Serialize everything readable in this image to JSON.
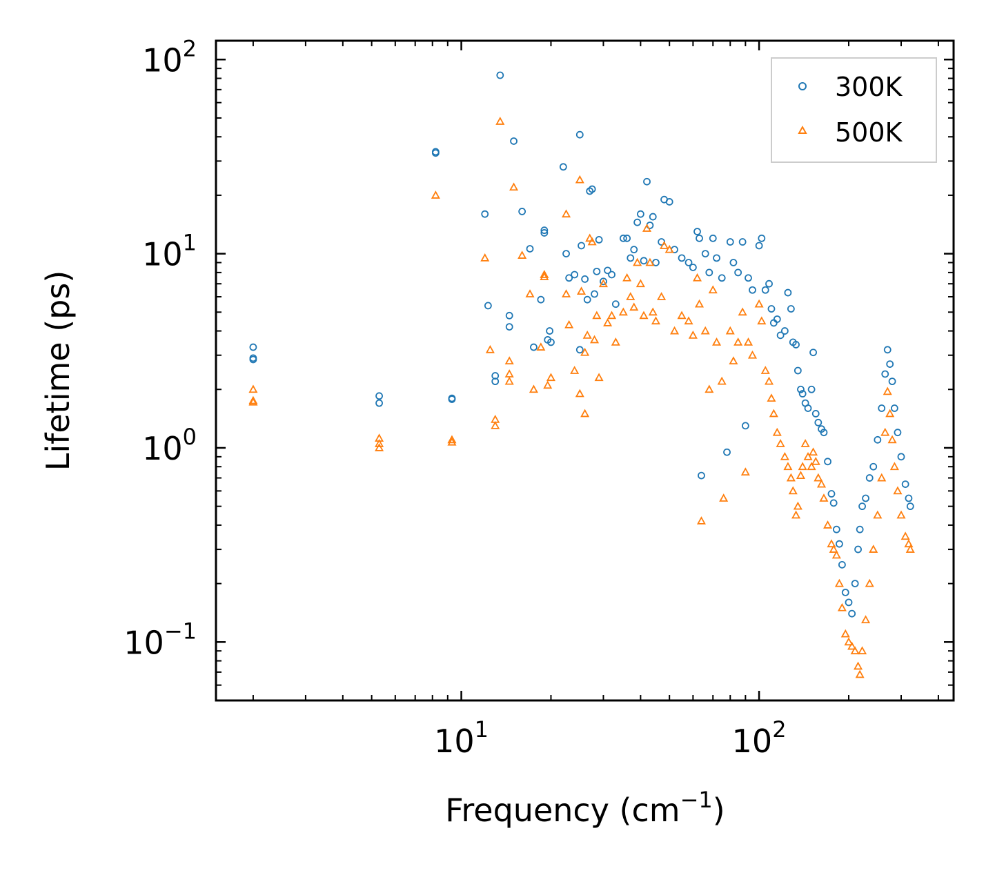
{
  "chart_data": {
    "type": "scatter",
    "title": "",
    "xlabel": "Frequency (cm",
    "xlabel_sup": "−1",
    "xlabel_tail": ")",
    "ylabel": "Lifetime (ps)",
    "xscale": "log",
    "yscale": "log",
    "xlim": [
      1.5,
      450
    ],
    "ylim": [
      0.05,
      125
    ],
    "x_ticks": [
      {
        "value": 10,
        "base": "10",
        "exp": "1"
      },
      {
        "value": 100,
        "base": "10",
        "exp": "2"
      }
    ],
    "y_ticks": [
      {
        "value": 0.1,
        "base": "10",
        "exp": "−1"
      },
      {
        "value": 1,
        "base": "10",
        "exp": "0"
      },
      {
        "value": 10,
        "base": "10",
        "exp": "1"
      },
      {
        "value": 100,
        "base": "10",
        "exp": "2"
      }
    ],
    "legend": {
      "position": "top-right"
    },
    "series": [
      {
        "name": "300K",
        "marker": "circle",
        "color": "#1f77b4",
        "points": [
          [
            2.0,
            3.3
          ],
          [
            2.0,
            2.9
          ],
          [
            2.0,
            2.85
          ],
          [
            5.3,
            1.85
          ],
          [
            5.3,
            1.7
          ],
          [
            9.3,
            1.8
          ],
          [
            9.3,
            1.78
          ],
          [
            8.2,
            33
          ],
          [
            8.2,
            33.5
          ],
          [
            12,
            16
          ],
          [
            12.3,
            5.4
          ],
          [
            13,
            2.35
          ],
          [
            13,
            2.2
          ],
          [
            13.5,
            83
          ],
          [
            14.5,
            4.8
          ],
          [
            14.5,
            4.2
          ],
          [
            15,
            38
          ],
          [
            16,
            16.5
          ],
          [
            17,
            10.6
          ],
          [
            17.5,
            3.3
          ],
          [
            18.5,
            5.8
          ],
          [
            19,
            12.8
          ],
          [
            19,
            13.2
          ],
          [
            19.5,
            3.6
          ],
          [
            20,
            3.5
          ],
          [
            19.8,
            4.0
          ],
          [
            22,
            28
          ],
          [
            22.5,
            10
          ],
          [
            23,
            7.5
          ],
          [
            24,
            7.8
          ],
          [
            25,
            41
          ],
          [
            25.3,
            11
          ],
          [
            25,
            3.2
          ],
          [
            26,
            7.4
          ],
          [
            26.5,
            5.8
          ],
          [
            27,
            21
          ],
          [
            27.5,
            21.5
          ],
          [
            28,
            6.2
          ],
          [
            28.5,
            8.1
          ],
          [
            29,
            11.8
          ],
          [
            30,
            7.2
          ],
          [
            31,
            8.2
          ],
          [
            32,
            7.8
          ],
          [
            33,
            5.5
          ],
          [
            35,
            12
          ],
          [
            36,
            12
          ],
          [
            37,
            9.5
          ],
          [
            38,
            10.5
          ],
          [
            39,
            14.5
          ],
          [
            40,
            16
          ],
          [
            41,
            9.2
          ],
          [
            42,
            23.5
          ],
          [
            43,
            14
          ],
          [
            44,
            15.5
          ],
          [
            45,
            9
          ],
          [
            47,
            11.5
          ],
          [
            48,
            19
          ],
          [
            50,
            18.5
          ],
          [
            52,
            10.5
          ],
          [
            55,
            9.5
          ],
          [
            58,
            9
          ],
          [
            60,
            8.5
          ],
          [
            62,
            13
          ],
          [
            63,
            12
          ],
          [
            64,
            0.72
          ],
          [
            66,
            10
          ],
          [
            68,
            8
          ],
          [
            70,
            12
          ],
          [
            72,
            9.5
          ],
          [
            75,
            7.5
          ],
          [
            78,
            0.95
          ],
          [
            80,
            11.5
          ],
          [
            82,
            9
          ],
          [
            85,
            8
          ],
          [
            88,
            11.5
          ],
          [
            90,
            1.3
          ],
          [
            92,
            7.5
          ],
          [
            95,
            6.5
          ],
          [
            100,
            11
          ],
          [
            102,
            12
          ],
          [
            105,
            6.5
          ],
          [
            108,
            7
          ],
          [
            110,
            5.2
          ],
          [
            112,
            4.4
          ],
          [
            115,
            4.6
          ],
          [
            118,
            3.8
          ],
          [
            122,
            4
          ],
          [
            125,
            6.3
          ],
          [
            128,
            5.2
          ],
          [
            130,
            3.5
          ],
          [
            133,
            3.4
          ],
          [
            135,
            2.5
          ],
          [
            138,
            2
          ],
          [
            140,
            1.9
          ],
          [
            143,
            1.7
          ],
          [
            146,
            1.6
          ],
          [
            150,
            2
          ],
          [
            152,
            3.1
          ],
          [
            155,
            1.5
          ],
          [
            158,
            1.35
          ],
          [
            162,
            1.25
          ],
          [
            165,
            1.2
          ],
          [
            170,
            0.85
          ],
          [
            175,
            0.58
          ],
          [
            178,
            0.52
          ],
          [
            182,
            0.38
          ],
          [
            186,
            0.32
          ],
          [
            190,
            0.25
          ],
          [
            195,
            0.18
          ],
          [
            200,
            0.16
          ],
          [
            205,
            0.14
          ],
          [
            210,
            0.2
          ],
          [
            215,
            0.3
          ],
          [
            218,
            0.38
          ],
          [
            222,
            0.5
          ],
          [
            228,
            0.55
          ],
          [
            235,
            0.7
          ],
          [
            242,
            0.8
          ],
          [
            250,
            1.1
          ],
          [
            258,
            1.6
          ],
          [
            265,
            2.4
          ],
          [
            270,
            3.2
          ],
          [
            275,
            2.7
          ],
          [
            280,
            2.2
          ],
          [
            285,
            1.6
          ],
          [
            292,
            1.2
          ],
          [
            300,
            0.9
          ],
          [
            310,
            0.65
          ],
          [
            318,
            0.55
          ],
          [
            322,
            0.5
          ]
        ]
      },
      {
        "name": "500K",
        "marker": "triangle",
        "color": "#ff7f0e",
        "points": [
          [
            2.0,
            2.0
          ],
          [
            2.0,
            1.75
          ],
          [
            2.0,
            1.72
          ],
          [
            5.3,
            1.12
          ],
          [
            5.3,
            1.05
          ],
          [
            5.3,
            1.0
          ],
          [
            9.3,
            1.1
          ],
          [
            9.3,
            1.07
          ],
          [
            8.2,
            20
          ],
          [
            12,
            9.5
          ],
          [
            12.5,
            3.2
          ],
          [
            13,
            1.4
          ],
          [
            13,
            1.3
          ],
          [
            13.5,
            48
          ],
          [
            14.5,
            2.8
          ],
          [
            14.5,
            2.4
          ],
          [
            14.5,
            2.2
          ],
          [
            15,
            22
          ],
          [
            16,
            9.8
          ],
          [
            17,
            6.2
          ],
          [
            17.5,
            2
          ],
          [
            18.5,
            3.3
          ],
          [
            19,
            7.6
          ],
          [
            19,
            7.8
          ],
          [
            19.5,
            2.1
          ],
          [
            20,
            2.3
          ],
          [
            22.5,
            16
          ],
          [
            22.5,
            6.2
          ],
          [
            23,
            4.3
          ],
          [
            24,
            2.5
          ],
          [
            25,
            24
          ],
          [
            25.3,
            6.4
          ],
          [
            25,
            1.9
          ],
          [
            26,
            3.1
          ],
          [
            26,
            1.5
          ],
          [
            26.5,
            3.8
          ],
          [
            27,
            12
          ],
          [
            27.5,
            11.5
          ],
          [
            28,
            3.6
          ],
          [
            28.5,
            4.8
          ],
          [
            29,
            2.3
          ],
          [
            30,
            7
          ],
          [
            31,
            4.4
          ],
          [
            32,
            4.8
          ],
          [
            33,
            3.5
          ],
          [
            35,
            5
          ],
          [
            36,
            7.5
          ],
          [
            37,
            6
          ],
          [
            38,
            5.3
          ],
          [
            39,
            9
          ],
          [
            40,
            7
          ],
          [
            41,
            4.8
          ],
          [
            42,
            13.5
          ],
          [
            43,
            9
          ],
          [
            44,
            5
          ],
          [
            45,
            4.5
          ],
          [
            47,
            6
          ],
          [
            48,
            11
          ],
          [
            50,
            10.5
          ],
          [
            52,
            4
          ],
          [
            55,
            4.8
          ],
          [
            58,
            4.5
          ],
          [
            60,
            3.8
          ],
          [
            62,
            7.5
          ],
          [
            63,
            5.5
          ],
          [
            64,
            0.42
          ],
          [
            66,
            4
          ],
          [
            68,
            2
          ],
          [
            70,
            6.5
          ],
          [
            72,
            3.5
          ],
          [
            75,
            2.2
          ],
          [
            76,
            0.55
          ],
          [
            80,
            4
          ],
          [
            82,
            2.8
          ],
          [
            85,
            3.5
          ],
          [
            88,
            5
          ],
          [
            90,
            0.75
          ],
          [
            92,
            3.5
          ],
          [
            95,
            3
          ],
          [
            100,
            5.5
          ],
          [
            102,
            4.5
          ],
          [
            105,
            2.5
          ],
          [
            108,
            2.2
          ],
          [
            110,
            1.8
          ],
          [
            112,
            1.5
          ],
          [
            115,
            1.2
          ],
          [
            118,
            1.05
          ],
          [
            122,
            0.9
          ],
          [
            125,
            0.8
          ],
          [
            128,
            0.7
          ],
          [
            130,
            0.6
          ],
          [
            133,
            0.45
          ],
          [
            135,
            0.5
          ],
          [
            138,
            0.72
          ],
          [
            140,
            0.8
          ],
          [
            143,
            1.05
          ],
          [
            146,
            0.9
          ],
          [
            150,
            0.8
          ],
          [
            152,
            0.95
          ],
          [
            155,
            0.85
          ],
          [
            158,
            0.7
          ],
          [
            162,
            0.65
          ],
          [
            165,
            0.55
          ],
          [
            170,
            0.4
          ],
          [
            175,
            0.32
          ],
          [
            178,
            0.3
          ],
          [
            182,
            0.28
          ],
          [
            186,
            0.2
          ],
          [
            190,
            0.15
          ],
          [
            195,
            0.11
          ],
          [
            200,
            0.1
          ],
          [
            205,
            0.095
          ],
          [
            210,
            0.09
          ],
          [
            215,
            0.075
          ],
          [
            218,
            0.068
          ],
          [
            222,
            0.09
          ],
          [
            228,
            0.13
          ],
          [
            235,
            0.2
          ],
          [
            242,
            0.3
          ],
          [
            250,
            0.45
          ],
          [
            258,
            0.7
          ],
          [
            265,
            1.2
          ],
          [
            270,
            1.95
          ],
          [
            275,
            1.5
          ],
          [
            280,
            1.1
          ],
          [
            285,
            0.8
          ],
          [
            292,
            0.6
          ],
          [
            300,
            0.45
          ],
          [
            310,
            0.35
          ],
          [
            318,
            0.32
          ],
          [
            322,
            0.3
          ]
        ]
      }
    ]
  }
}
